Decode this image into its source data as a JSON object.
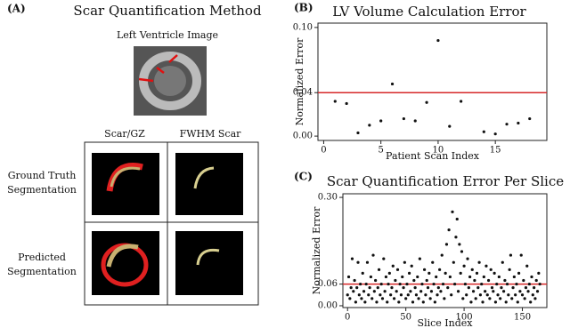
{
  "panel_a": {
    "label": "(A)",
    "title": "Scar Quantification Method",
    "image_label": "Left Ventricle Image",
    "columns": [
      "Scar/GZ",
      "FWHM Scar"
    ],
    "rows": [
      [
        "Ground Truth",
        "Segmentation"
      ],
      [
        "Predicted",
        "Segmentation"
      ]
    ]
  },
  "chart_data": [
    {
      "type": "scatter",
      "label": "(B)",
      "title": "LV Volume Calculation Error",
      "x_label": "Patient Scan Index",
      "y_label": "Normalized Error",
      "x": [
        1,
        2,
        3,
        4,
        5,
        6,
        7,
        8,
        9,
        10,
        11,
        12,
        14,
        15,
        16,
        17,
        18
      ],
      "values": [
        0.032,
        0.03,
        0.003,
        0.01,
        0.014,
        0.048,
        0.016,
        0.014,
        0.031,
        0.088,
        0.009,
        0.032,
        0.004,
        0.002,
        0.011,
        0.012,
        0.016
      ],
      "color": "#111111",
      "reference_line": {
        "value": 0.04,
        "color": "#d62728"
      },
      "xlim": [
        -0.5,
        19.5
      ],
      "ylim": [
        -0.004,
        0.104
      ],
      "xticks": [
        0,
        5,
        10,
        15
      ],
      "yticks": [
        {
          "value": 0,
          "label": "0.00"
        },
        0.04,
        {
          "value": 0.1,
          "label": "0.10"
        }
      ]
    },
    {
      "type": "scatter",
      "label": "(C)",
      "title": "Scar Quantification Error Per Slice",
      "x_label": "Slice Index",
      "y_label": "Normalized Error",
      "x": [
        0,
        1,
        2,
        3,
        4,
        5,
        6,
        7,
        8,
        9,
        10,
        11,
        12,
        13,
        14,
        15,
        16,
        17,
        18,
        19,
        20,
        21,
        22,
        23,
        24,
        25,
        26,
        27,
        28,
        29,
        30,
        31,
        32,
        33,
        34,
        35,
        36,
        37,
        38,
        39,
        40,
        41,
        42,
        43,
        44,
        45,
        46,
        47,
        48,
        49,
        50,
        51,
        52,
        53,
        54,
        55,
        56,
        57,
        58,
        59,
        60,
        61,
        62,
        63,
        64,
        65,
        66,
        67,
        68,
        69,
        70,
        71,
        72,
        73,
        74,
        75,
        76,
        77,
        78,
        79,
        80,
        81,
        82,
        83,
        84,
        85,
        86,
        87,
        88,
        89,
        90,
        91,
        92,
        93,
        94,
        95,
        96,
        97,
        98,
        99,
        100,
        101,
        102,
        103,
        104,
        105,
        106,
        107,
        108,
        109,
        110,
        111,
        112,
        113,
        114,
        115,
        116,
        117,
        118,
        119,
        120,
        121,
        122,
        123,
        124,
        125,
        126,
        127,
        128,
        129,
        130,
        131,
        132,
        133,
        134,
        135,
        136,
        137,
        138,
        139,
        140,
        141,
        142,
        143,
        144,
        145,
        146,
        147,
        148,
        149,
        150,
        151,
        152,
        153,
        154,
        155,
        156,
        157,
        158,
        159,
        160,
        161,
        162,
        163,
        164,
        165
      ],
      "values": [
        0.03,
        0.08,
        0.02,
        0.05,
        0.13,
        0.04,
        0.07,
        0.01,
        0.05,
        0.12,
        0.03,
        0.06,
        0.02,
        0.09,
        0.04,
        0.01,
        0.06,
        0.12,
        0.03,
        0.05,
        0.08,
        0.02,
        0.14,
        0.04,
        0.07,
        0.01,
        0.05,
        0.1,
        0.03,
        0.06,
        0.02,
        0.13,
        0.04,
        0.08,
        0.01,
        0.06,
        0.09,
        0.03,
        0.05,
        0.11,
        0.02,
        0.07,
        0.04,
        0.1,
        0.01,
        0.06,
        0.03,
        0.08,
        0.05,
        0.12,
        0.02,
        0.06,
        0.03,
        0.09,
        0.04,
        0.11,
        0.01,
        0.07,
        0.05,
        0.03,
        0.08,
        0.02,
        0.13,
        0.04,
        0.06,
        0.01,
        0.1,
        0.03,
        0.07,
        0.05,
        0.09,
        0.02,
        0.04,
        0.12,
        0.06,
        0.01,
        0.08,
        0.03,
        0.05,
        0.1,
        0.04,
        0.14,
        0.06,
        0.02,
        0.09,
        0.17,
        0.05,
        0.21,
        0.08,
        0.03,
        0.26,
        0.12,
        0.06,
        0.19,
        0.24,
        0.04,
        0.17,
        0.09,
        0.15,
        0.02,
        0.11,
        0.06,
        0.03,
        0.13,
        0.05,
        0.08,
        0.01,
        0.1,
        0.04,
        0.07,
        0.02,
        0.09,
        0.05,
        0.12,
        0.03,
        0.06,
        0.01,
        0.08,
        0.04,
        0.11,
        0.03,
        0.07,
        0.02,
        0.1,
        0.05,
        0.04,
        0.09,
        0.01,
        0.06,
        0.03,
        0.08,
        0.02,
        0.05,
        0.12,
        0.04,
        0.07,
        0.01,
        0.06,
        0.03,
        0.1,
        0.14,
        0.02,
        0.05,
        0.08,
        0.03,
        0.06,
        0.01,
        0.09,
        0.04,
        0.14,
        0.03,
        0.07,
        0.02,
        0.05,
        0.11,
        0.04,
        0.06,
        0.01,
        0.08,
        0.03,
        0.05,
        0.02,
        0.07,
        0.04,
        0.09,
        0.06
      ],
      "color": "#111111",
      "reference_line": {
        "value": 0.06,
        "color": "#d62728"
      },
      "xlim": [
        -4,
        171
      ],
      "ylim": [
        -0.005,
        0.31
      ],
      "xticks": [
        0,
        50,
        100,
        150
      ],
      "yticks": [
        {
          "value": 0,
          "label": "0.00"
        },
        0.06,
        {
          "value": 0.3,
          "label": "0.30"
        }
      ]
    }
  ]
}
